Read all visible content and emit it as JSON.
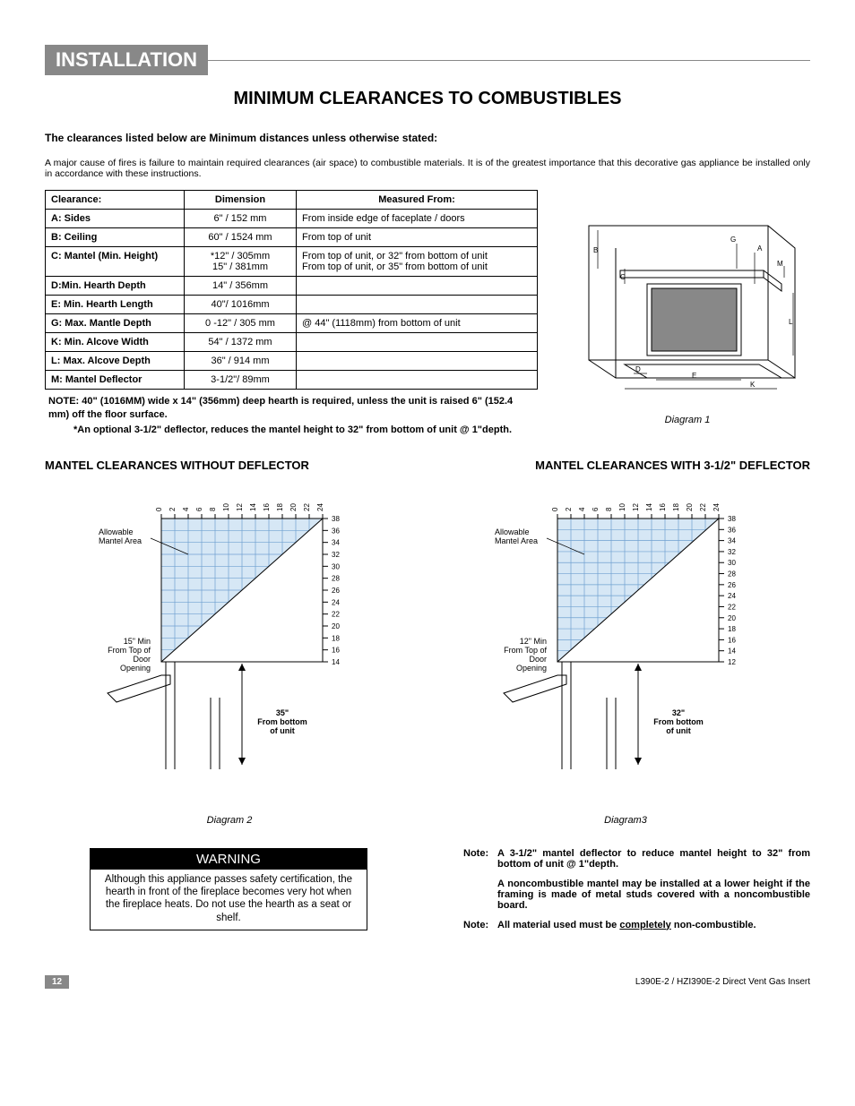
{
  "section_header": "Installation",
  "page_title": "MINIMUM CLEARANCES TO COMBUSTIBLES",
  "intro_bold": "The clearances listed below are Minimum distances unless otherwise stated:",
  "intro_para": "A major cause of fires is failure to maintain required clearances (air space) to combustible materials. It is of the greatest importance that this decorative gas appliance be installed only in accordance with these instructions.",
  "table": {
    "headers": [
      "Clearance:",
      "Dimension",
      "Measured From:"
    ],
    "rows": [
      [
        "A: Sides",
        "6\" / 152 mm",
        "From inside edge of faceplate / doors"
      ],
      [
        "B: Ceiling",
        "60\" / 1524 mm",
        "From top of unit"
      ],
      [
        "C: Mantel (Min. Height)",
        "*12\" / 305mm\n15\" / 381mm",
        "From top of unit, or 32\" from bottom of unit\nFrom top of unit, or 35\" from bottom of unit"
      ],
      [
        "D:Min. Hearth Depth",
        "14\" / 356mm",
        ""
      ],
      [
        "E: Min. Hearth Length",
        "40\"/ 1016mm",
        ""
      ],
      [
        "G: Max. Mantle Depth",
        "0 -12\" / 305 mm",
        "@ 44\" (1118mm) from bottom of unit"
      ],
      [
        "K: Min. Alcove Width",
        "54\" / 1372 mm",
        ""
      ],
      [
        "L: Max. Alcove Depth",
        "36\" / 914 mm",
        ""
      ],
      [
        "M: Mantel Deflector",
        "3-1/2\"/ 89mm",
        ""
      ]
    ],
    "note_l1": "NOTE: 40\" (1016MM) wide x 14\" (356mm) deep hearth is required, unless the unit is raised 6\" (152.4 mm) off the floor surface.",
    "note_l2": "*An optional 3-1/2\" deflector, reduces the mantel height to 32\" from bottom of unit @ 1\"depth."
  },
  "diagram1": {
    "caption": "Diagram 1",
    "labels": [
      "A",
      "B",
      "C",
      "D",
      "E",
      "G",
      "K",
      "L",
      "M"
    ],
    "line_color": "#000000",
    "fireplace_fill": "#888888"
  },
  "chart_left": {
    "title": "MANTEL CLEARANCES WITHOUT DEFLECTOR",
    "caption": "Diagram 2",
    "x_ticks": [
      0,
      2,
      4,
      6,
      8,
      10,
      12,
      14,
      16,
      18,
      20,
      22,
      24
    ],
    "y_ticks": [
      14,
      16,
      18,
      20,
      22,
      24,
      26,
      28,
      30,
      32,
      34,
      36,
      38
    ],
    "allowable_label": "Allowable\nMantel Area",
    "min_label": "15\" Min\nFrom Top of\nDoor\nOpening",
    "bottom_label": "35\"\nFrom bottom\nof unit",
    "grid_fill": "#d6e7f5",
    "grid_line": "#6fa1d0",
    "outline": "#000000",
    "tick_fontsize": 8
  },
  "chart_right": {
    "title": "MANTEL CLEARANCES WITH 3-1/2\" DEFLECTOR",
    "caption": "Diagram3",
    "x_ticks": [
      0,
      2,
      4,
      6,
      8,
      10,
      12,
      14,
      16,
      18,
      20,
      22,
      24
    ],
    "y_ticks": [
      12,
      14,
      16,
      18,
      20,
      22,
      24,
      26,
      28,
      30,
      32,
      34,
      36,
      38
    ],
    "allowable_label": "Allowable\nMantel Area",
    "min_label": "12\" Min\nFrom Top of\nDoor\nOpening",
    "bottom_label": "32\"\nFrom bottom\nof unit",
    "grid_fill": "#d6e7f5",
    "grid_line": "#6fa1d0",
    "outline": "#000000",
    "tick_fontsize": 8
  },
  "warning": {
    "header": "WARNING",
    "body": "Although this appliance passes safety certification, the hearth in front of the fireplace becomes very hot when the fireplace heats. Do not use the hearth as a seat or shelf."
  },
  "notes": {
    "n1_label": "Note:",
    "n1": "A 3-1/2\" mantel deflector to reduce mantel height to 32\" from bottom of unit @ 1\"depth.",
    "n2": "A noncombustible mantel may be installed at a lower height if the framing is made of metal studs covered with a noncombustible board.",
    "n3_label": "Note:",
    "n3_a": "All material used must be ",
    "n3_u": "completely",
    "n3_b": " non-combustible."
  },
  "footer": {
    "page": "12",
    "doc": "L390E-2 / HZI390E-2 Direct Vent Gas Insert"
  }
}
